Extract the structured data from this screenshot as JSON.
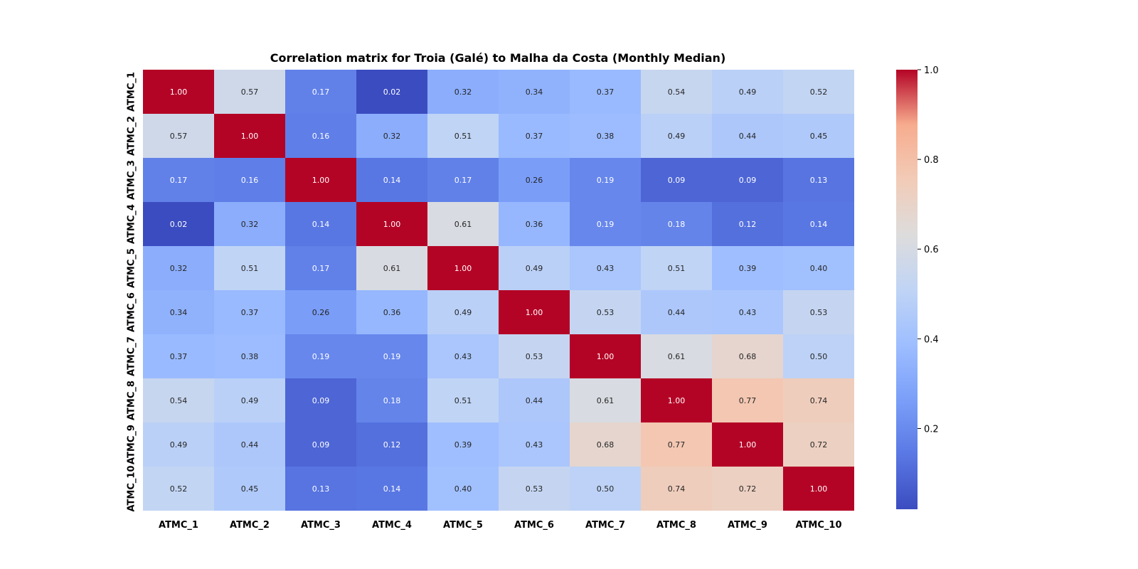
{
  "chart_data": {
    "type": "heatmap",
    "title": "Correlation matrix for Troia (Galé) to Malha da Costa (Monthly Median)",
    "xlabel": "",
    "ylabel": "",
    "x_categories": [
      "ATMC_1",
      "ATMC_2",
      "ATMC_3",
      "ATMC_4",
      "ATMC_5",
      "ATMC_6",
      "ATMC_7",
      "ATMC_8",
      "ATMC_9",
      "ATMC_10"
    ],
    "y_categories": [
      "ATMC_1",
      "ATMC_2",
      "ATMC_3",
      "ATMC_4",
      "ATMC_5",
      "ATMC_6",
      "ATMC_7",
      "ATMC_8",
      "ATMC_9",
      "ATMC_10"
    ],
    "values": [
      [
        1.0,
        0.57,
        0.17,
        0.02,
        0.32,
        0.34,
        0.37,
        0.54,
        0.49,
        0.52
      ],
      [
        0.57,
        1.0,
        0.16,
        0.32,
        0.51,
        0.37,
        0.38,
        0.49,
        0.44,
        0.45
      ],
      [
        0.17,
        0.16,
        1.0,
        0.14,
        0.17,
        0.26,
        0.19,
        0.09,
        0.09,
        0.13
      ],
      [
        0.02,
        0.32,
        0.14,
        1.0,
        0.61,
        0.36,
        0.19,
        0.18,
        0.12,
        0.14
      ],
      [
        0.32,
        0.51,
        0.17,
        0.61,
        1.0,
        0.49,
        0.43,
        0.51,
        0.39,
        0.4
      ],
      [
        0.34,
        0.37,
        0.26,
        0.36,
        0.49,
        1.0,
        0.53,
        0.44,
        0.43,
        0.53
      ],
      [
        0.37,
        0.38,
        0.19,
        0.19,
        0.43,
        0.53,
        1.0,
        0.61,
        0.68,
        0.5
      ],
      [
        0.54,
        0.49,
        0.09,
        0.18,
        0.51,
        0.44,
        0.61,
        1.0,
        0.77,
        0.74
      ],
      [
        0.49,
        0.44,
        0.09,
        0.12,
        0.39,
        0.43,
        0.68,
        0.77,
        1.0,
        0.72
      ],
      [
        0.52,
        0.45,
        0.13,
        0.14,
        0.4,
        0.53,
        0.5,
        0.74,
        0.72,
        1.0
      ]
    ],
    "value_format": "0.00",
    "colormap": "coolwarm",
    "colormap_stops": [
      "#3b4cc0",
      "#dddddd",
      "#b40426"
    ],
    "value_range": [
      0.02,
      1.0
    ],
    "colorbar": {
      "ticks": [
        0.2,
        0.4,
        0.6,
        0.8,
        1.0
      ],
      "tick_labels": [
        "0.2",
        "0.4",
        "0.6",
        "0.8",
        "1.0"
      ],
      "placement": "right"
    },
    "grid": false,
    "legend": "colorbar-right"
  }
}
